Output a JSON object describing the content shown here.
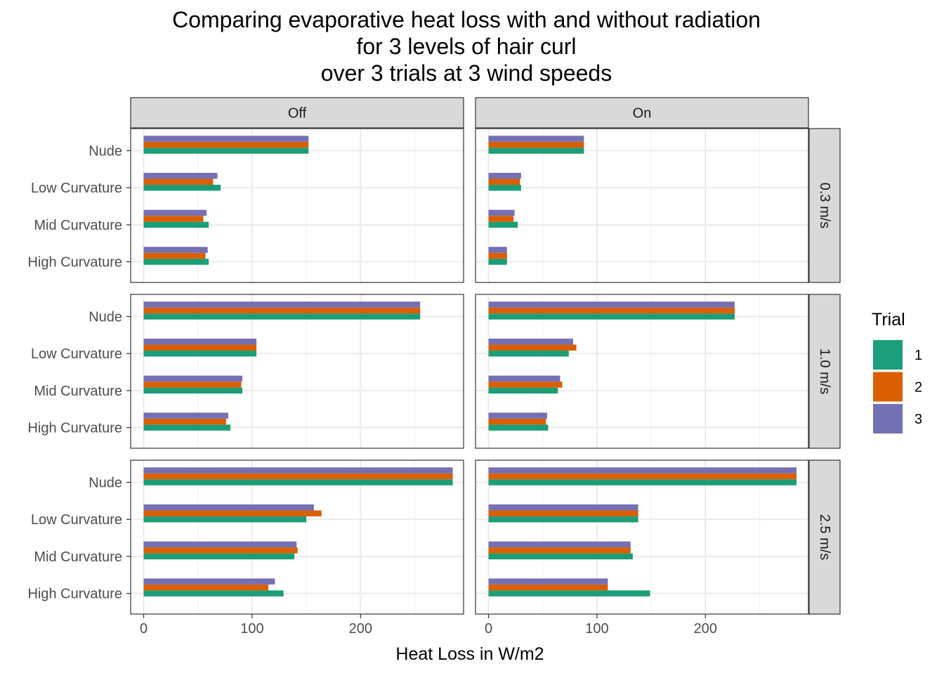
{
  "chart_data": {
    "type": "bar",
    "orientation": "horizontal",
    "title": [
      "Comparing evaporative heat loss with and without radiation",
      "for 3 levels of hair curl",
      "over 3 trials at 3 wind speeds"
    ],
    "xlabel": "Heat Loss in W/m2",
    "ylabel": "",
    "xlim": [
      -12,
      295
    ],
    "x_ticks": [
      0,
      100,
      200
    ],
    "grid": true,
    "legend": {
      "title": "Trial",
      "placement": "right",
      "entries": [
        {
          "label": "1",
          "color": "#1b9e77"
        },
        {
          "label": "2",
          "color": "#d95f02"
        },
        {
          "label": "3",
          "color": "#7570b3"
        }
      ]
    },
    "facet_columns": [
      "Off",
      "On"
    ],
    "facet_rows": [
      "0.3 m/s",
      "1.0 m/s",
      "2.5 m/s"
    ],
    "categories": [
      "Nude",
      "Low Curvature",
      "Mid Curvature",
      "High Curvature"
    ],
    "panels": [
      {
        "column": "Off",
        "row": "0.3 m/s",
        "series": [
          {
            "name": "1",
            "values": [
              152,
              71,
              60,
              60
            ]
          },
          {
            "name": "2",
            "values": [
              152,
              64,
              55,
              57
            ]
          },
          {
            "name": "3",
            "values": [
              152,
              68,
              58,
              59
            ]
          }
        ]
      },
      {
        "column": "On",
        "row": "0.3 m/s",
        "series": [
          {
            "name": "1",
            "values": [
              88,
              30,
              27,
              17
            ]
          },
          {
            "name": "2",
            "values": [
              88,
              29,
              23,
              17
            ]
          },
          {
            "name": "3",
            "values": [
              88,
              30,
              24,
              17
            ]
          }
        ]
      },
      {
        "column": "Off",
        "row": "1.0 m/s",
        "series": [
          {
            "name": "1",
            "values": [
              255,
              104,
              91,
              80
            ]
          },
          {
            "name": "2",
            "values": [
              255,
              104,
              90,
              76
            ]
          },
          {
            "name": "3",
            "values": [
              255,
              104,
              91,
              78
            ]
          }
        ]
      },
      {
        "column": "On",
        "row": "1.0 m/s",
        "series": [
          {
            "name": "1",
            "values": [
              227,
              74,
              64,
              55
            ]
          },
          {
            "name": "2",
            "values": [
              227,
              81,
              68,
              53
            ]
          },
          {
            "name": "3",
            "values": [
              227,
              78,
              66,
              54
            ]
          }
        ]
      },
      {
        "column": "Off",
        "row": "2.5 m/s",
        "series": [
          {
            "name": "1",
            "values": [
              285,
              150,
              139,
              129
            ]
          },
          {
            "name": "2",
            "values": [
              285,
              164,
              142,
              115
            ]
          },
          {
            "name": "3",
            "values": [
              285,
              157,
              141,
              121
            ]
          }
        ]
      },
      {
        "column": "On",
        "row": "2.5 m/s",
        "series": [
          {
            "name": "1",
            "values": [
              284,
              138,
              133,
              149
            ]
          },
          {
            "name": "2",
            "values": [
              284,
              138,
              131,
              110
            ]
          },
          {
            "name": "3",
            "values": [
              284,
              138,
              131,
              110
            ]
          }
        ]
      }
    ]
  }
}
